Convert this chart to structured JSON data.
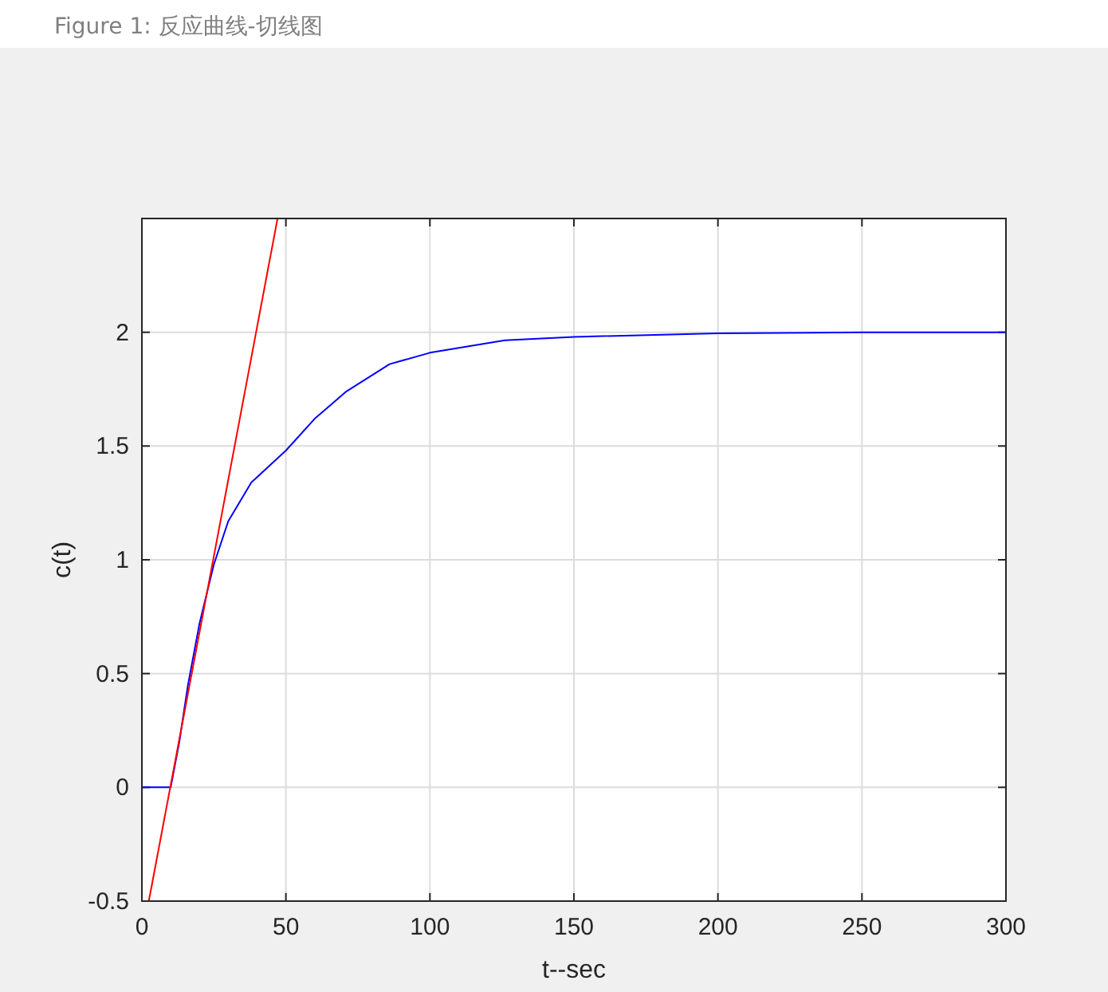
{
  "chart_data": {
    "type": "line",
    "title": "Figure 1: 反应曲线-切线图",
    "xlabel": "t--sec",
    "ylabel": "c(t)",
    "xlim": [
      0,
      300
    ],
    "ylim": [
      -0.5,
      2.5
    ],
    "xticks": [
      0,
      50,
      100,
      150,
      200,
      250,
      300
    ],
    "yticks": [
      -0.5,
      0,
      0.5,
      1,
      1.5,
      2,
      {
        "value": 2.5,
        "label": null
      }
    ],
    "grid": true,
    "line_style": "solid",
    "series": [
      {
        "color": "#0000ff",
        "x": [
          0,
          10,
          13,
          16,
          20,
          25,
          30,
          38,
          50,
          60,
          71,
          86,
          100,
          126,
          150,
          200,
          250,
          300
        ],
        "values": [
          0,
          0,
          0.2,
          0.45,
          0.72,
          0.98,
          1.17,
          1.34,
          1.48,
          1.62,
          1.74,
          1.86,
          1.91,
          1.965,
          1.98,
          1.995,
          2,
          2
        ]
      },
      {
        "color": "#ff0000",
        "x": [
          2.4,
          47.1
        ],
        "values": [
          -0.5,
          2.5
        ]
      }
    ]
  }
}
